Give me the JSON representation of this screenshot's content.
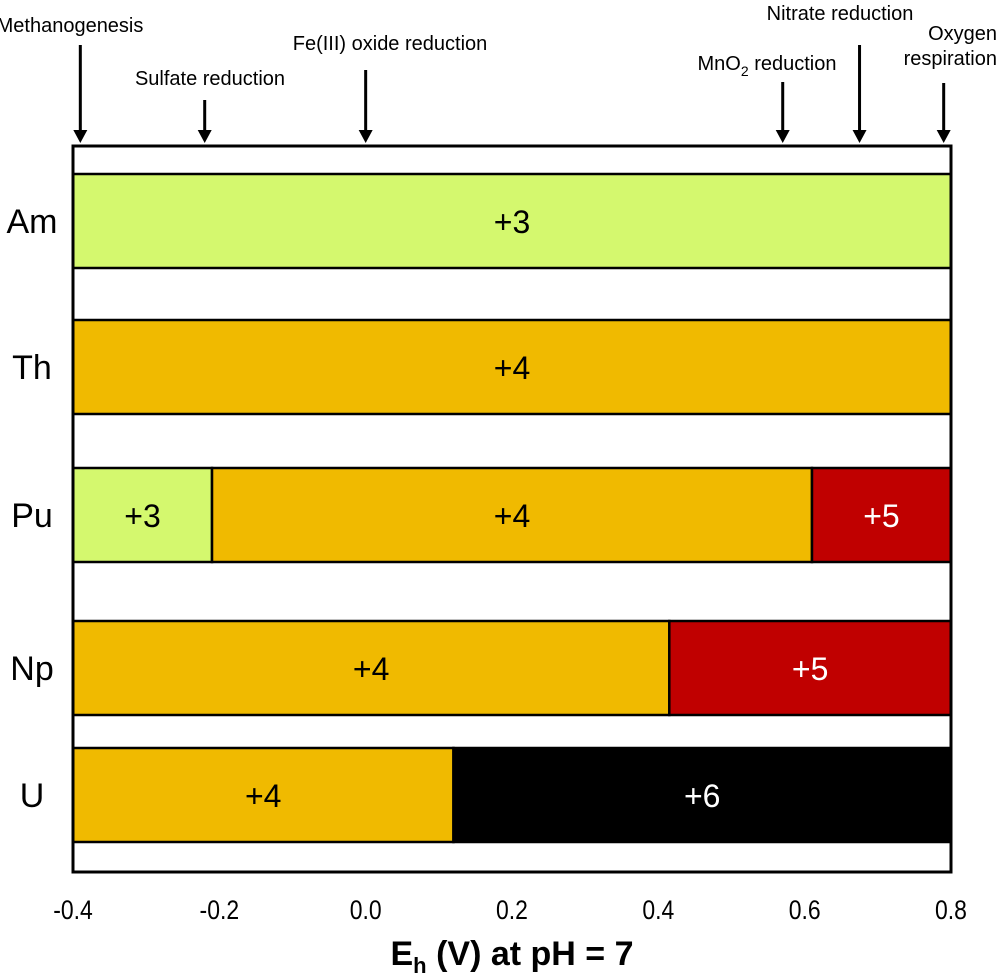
{
  "chart_data": {
    "type": "bar",
    "orientation": "horizontal-stacked-ranges",
    "xlabel": "E_h (V) at pH = 7",
    "xlabel_main": "E",
    "xlabel_sub": "h",
    "xlabel_rest": " (V) at pH = 7",
    "xlim": [
      -0.4,
      0.8
    ],
    "xticks": [
      -0.4,
      -0.2,
      0.0,
      0.2,
      0.4,
      0.6,
      0.8
    ],
    "xtick_labels": [
      "-0.4",
      "-0.2",
      "0.0",
      "0.2",
      "0.4",
      "0.6",
      "0.8"
    ],
    "grid": false,
    "colors": {
      "+3": "#d4f86e",
      "+4": "#f0ba00",
      "+5": "#c00000",
      "+6": "#000000"
    },
    "text_colors": {
      "+3": "#000000",
      "+4": "#000000",
      "+5": "#ffffff",
      "+6": "#ffffff"
    },
    "categories": [
      "Am",
      "Th",
      "Pu",
      "Np",
      "U"
    ],
    "series": [
      {
        "name": "Am",
        "segments": [
          {
            "label": "+3",
            "from": -0.4,
            "to": 0.8
          }
        ]
      },
      {
        "name": "Th",
        "segments": [
          {
            "label": "+4",
            "from": -0.4,
            "to": 0.8
          }
        ]
      },
      {
        "name": "Pu",
        "segments": [
          {
            "label": "+3",
            "from": -0.4,
            "to": -0.21
          },
          {
            "label": "+4",
            "from": -0.21,
            "to": 0.61
          },
          {
            "label": "+5",
            "from": 0.61,
            "to": 0.8
          }
        ]
      },
      {
        "name": "Np",
        "segments": [
          {
            "label": "+4",
            "from": -0.4,
            "to": 0.415
          },
          {
            "label": "+5",
            "from": 0.415,
            "to": 0.8
          }
        ]
      },
      {
        "name": "U",
        "segments": [
          {
            "label": "+4",
            "from": -0.4,
            "to": 0.12
          },
          {
            "label": "+6",
            "from": 0.12,
            "to": 0.8
          }
        ]
      }
    ],
    "annotations": [
      {
        "text": "Methanogenesis",
        "x": -0.39
      },
      {
        "text": "Sulfate reduction",
        "x": -0.22
      },
      {
        "text": "Fe(III) oxide reduction",
        "x": 0.0
      },
      {
        "text": "MnO2 reduction",
        "main": "MnO",
        "sub": "2",
        "rest": " reduction",
        "x": 0.57
      },
      {
        "text": "Nitrate reduction",
        "x": 0.675
      },
      {
        "text": "Oxygen respiration",
        "line1": "Oxygen",
        "line2": "respiration",
        "x": 0.79
      }
    ]
  }
}
